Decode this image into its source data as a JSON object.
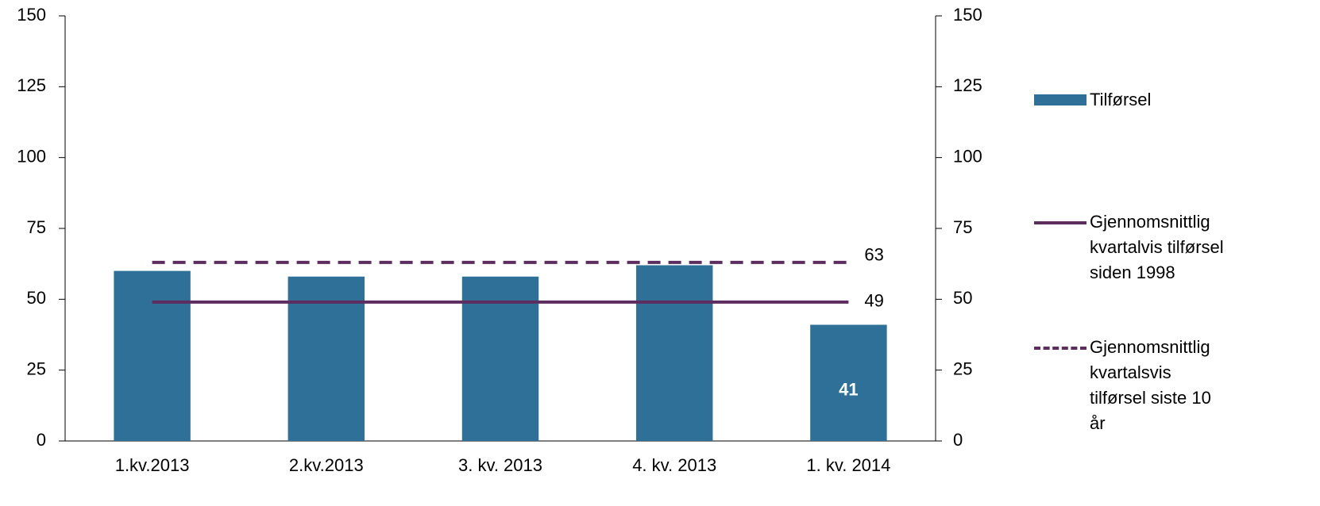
{
  "chart_data": {
    "type": "bar",
    "categories": [
      "1.kv.2013",
      "2.kv.2013",
      "3. kv. 2013",
      "4. kv. 2013",
      "1. kv. 2014"
    ],
    "series": [
      {
        "name": "Tilførsel",
        "type": "bar",
        "color": "#2e7098",
        "values": [
          60,
          58,
          58,
          62,
          41
        ],
        "value_labels": [
          null,
          null,
          null,
          null,
          "41"
        ]
      },
      {
        "name": "Gjennomsnittlig kvartalvis tilførsel siden 1998",
        "type": "line",
        "style": "solid",
        "color": "#5c2d5e",
        "values": [
          49,
          49,
          49,
          49,
          49
        ]
      },
      {
        "name": "Gjennomsnittlig kvartalsvis tilførsel siste 10 år",
        "type": "line",
        "style": "dashed",
        "color": "#5c2d5e",
        "values": [
          63,
          63,
          63,
          63,
          63
        ]
      }
    ],
    "ylim": [
      0,
      150
    ],
    "yticks": [
      0,
      25,
      50,
      75,
      100,
      125,
      150
    ],
    "y2lim": [
      0,
      150
    ],
    "y2ticks": [
      0,
      25,
      50,
      75,
      100,
      125,
      150
    ],
    "grid": false,
    "legend": "right"
  }
}
